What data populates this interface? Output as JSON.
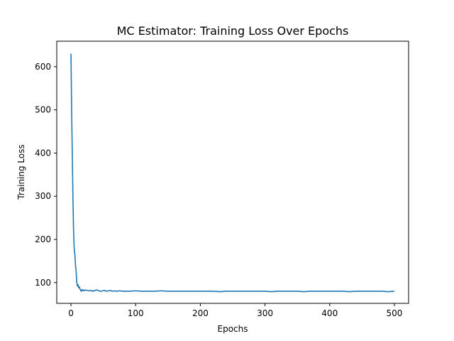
{
  "chart_data": {
    "type": "line",
    "title": "MC Estimator: Training Loss Over Epochs",
    "xlabel": "Epochs",
    "ylabel": "Training Loss",
    "xlim": [
      -22,
      522
    ],
    "ylim": [
      52,
      659
    ],
    "x_ticks": [
      0,
      100,
      200,
      300,
      400,
      500
    ],
    "y_ticks": [
      100,
      200,
      300,
      400,
      500,
      600
    ],
    "grid": false,
    "line_color": "#1f77b4",
    "series": [
      {
        "x": [
          0,
          1,
          2,
          3,
          4,
          5,
          6,
          7,
          8,
          9,
          10,
          11,
          12,
          13,
          14,
          15,
          16,
          17,
          18,
          19,
          20,
          22,
          25,
          28,
          31,
          34,
          37,
          40,
          43,
          46,
          49,
          52,
          55,
          58,
          61,
          64,
          67,
          70,
          75,
          80,
          90,
          100,
          110,
          120,
          130,
          140,
          150,
          160,
          170,
          180,
          190,
          200,
          210,
          220,
          230,
          240,
          250,
          260,
          270,
          280,
          290,
          300,
          310,
          320,
          330,
          340,
          350,
          360,
          370,
          380,
          390,
          400,
          410,
          420,
          430,
          440,
          450,
          460,
          470,
          480,
          490,
          500
        ],
        "y": [
          630,
          500,
          400,
          300,
          220,
          178,
          165,
          140,
          125,
          100,
          92,
          95,
          88,
          90,
          85,
          82,
          80,
          84,
          82,
          83,
          81,
          83,
          82,
          81,
          82,
          80,
          82,
          83,
          81,
          80,
          81,
          82,
          80,
          81,
          82,
          80,
          81,
          80,
          81,
          80,
          80,
          81,
          80,
          80,
          80,
          81,
          80,
          80,
          80,
          80,
          80,
          80,
          80,
          80,
          79,
          80,
          80,
          80,
          80,
          80,
          80,
          80,
          79,
          80,
          80,
          80,
          80,
          79,
          80,
          80,
          80,
          80,
          80,
          80,
          79,
          80,
          80,
          80,
          80,
          80,
          79,
          80
        ]
      }
    ]
  }
}
